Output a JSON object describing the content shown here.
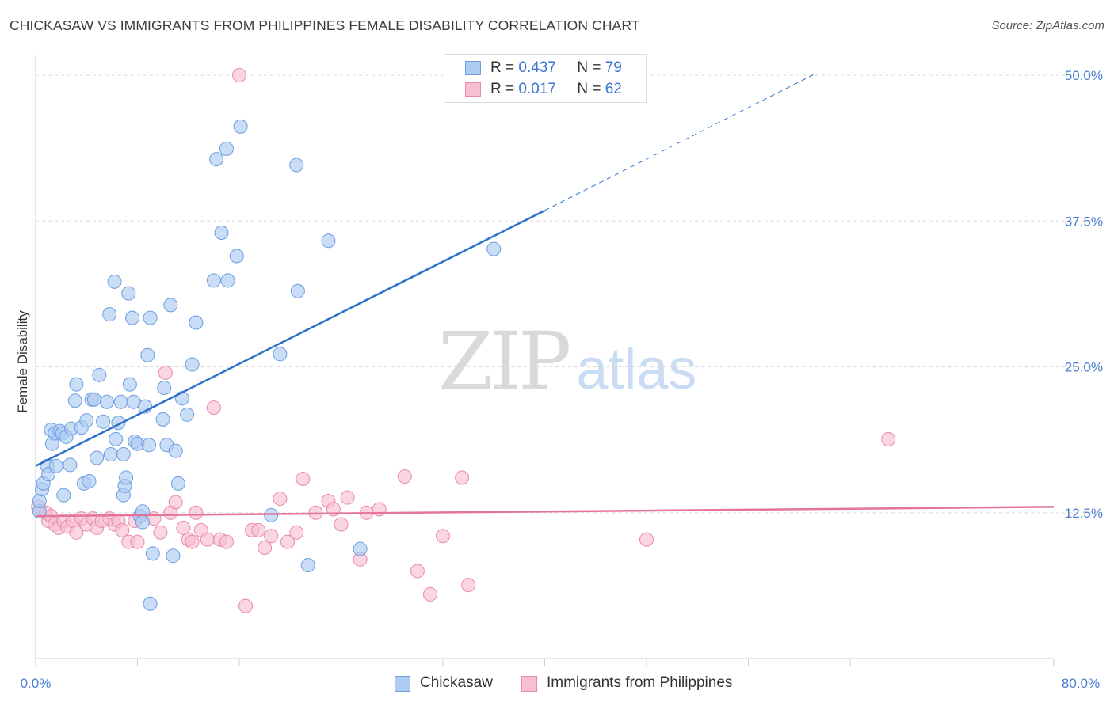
{
  "header": {
    "title": "CHICKASAW VS IMMIGRANTS FROM PHILIPPINES FEMALE DISABILITY CORRELATION CHART",
    "source": "Source: ZipAtlas.com"
  },
  "watermark": {
    "part1": "ZIP",
    "part2": "atlas"
  },
  "legend_stats": [
    {
      "r_label": "R =",
      "r_value": "0.437",
      "n_label": "N =",
      "n_value": "79"
    },
    {
      "r_label": "R =",
      "r_value": "0.017",
      "n_label": "N =",
      "n_value": "62"
    }
  ],
  "colors": {
    "blue_fill": "#aecbf2",
    "blue_stroke": "#6a9ee0",
    "blue_line": "#2f6fcc",
    "pink_fill": "#f8bfd2",
    "pink_stroke": "#e98aaa",
    "pink_line": "#e5739a",
    "tick_text": "#4a7fd0",
    "grid": "#dddddd"
  },
  "chart_data": {
    "type": "scatter",
    "title": "CHICKASAW VS IMMIGRANTS FROM PHILIPPINES FEMALE DISABILITY CORRELATION CHART",
    "ylabel": "Female Disability",
    "xlabel": "",
    "xlim": [
      0,
      80
    ],
    "ylim": [
      0,
      50
    ],
    "x_tick_labels": [
      "0.0%",
      "80.0%"
    ],
    "y_ticks": [
      12.5,
      25.0,
      37.5,
      50.0
    ],
    "y_tick_labels": [
      "12.5%",
      "25.0%",
      "37.5%",
      "50.0%"
    ],
    "legend_position": "top-center",
    "grid": true,
    "series": [
      {
        "name": "Chickasaw",
        "color": "#6a9ee0",
        "r": 0.437,
        "n": 79,
        "trend": {
          "x0": 0,
          "y0": 16.5,
          "x1": 40,
          "y1": 38.4,
          "dash_to_x": 61.4,
          "dash_to_y": 50.2
        },
        "points": [
          [
            0.3,
            12.6
          ],
          [
            0.3,
            13.5
          ],
          [
            0.5,
            14.5
          ],
          [
            0.6,
            15.0
          ],
          [
            0.9,
            16.5
          ],
          [
            1.0,
            15.8
          ],
          [
            1.2,
            19.6
          ],
          [
            1.3,
            18.4
          ],
          [
            1.5,
            19.3
          ],
          [
            1.6,
            16.5
          ],
          [
            1.9,
            19.5
          ],
          [
            2.1,
            19.3
          ],
          [
            2.2,
            14.0
          ],
          [
            2.4,
            19.0
          ],
          [
            2.7,
            16.6
          ],
          [
            2.8,
            19.7
          ],
          [
            3.1,
            22.1
          ],
          [
            3.2,
            23.5
          ],
          [
            3.6,
            19.8
          ],
          [
            3.8,
            15.0
          ],
          [
            4.0,
            20.4
          ],
          [
            4.2,
            15.2
          ],
          [
            4.4,
            22.2
          ],
          [
            4.6,
            22.2
          ],
          [
            4.8,
            17.2
          ],
          [
            5.0,
            24.3
          ],
          [
            5.3,
            20.3
          ],
          [
            5.6,
            22.0
          ],
          [
            5.8,
            29.5
          ],
          [
            5.9,
            17.5
          ],
          [
            6.2,
            32.3
          ],
          [
            6.3,
            18.8
          ],
          [
            6.5,
            20.2
          ],
          [
            6.7,
            22.0
          ],
          [
            6.9,
            17.5
          ],
          [
            6.9,
            14.0
          ],
          [
            7.0,
            14.8
          ],
          [
            7.1,
            15.5
          ],
          [
            7.3,
            31.3
          ],
          [
            7.4,
            23.5
          ],
          [
            7.6,
            29.2
          ],
          [
            7.7,
            22.0
          ],
          [
            7.8,
            18.6
          ],
          [
            8.0,
            18.4
          ],
          [
            8.2,
            12.2
          ],
          [
            8.4,
            12.6
          ],
          [
            8.4,
            11.7
          ],
          [
            8.6,
            21.6
          ],
          [
            8.8,
            26.0
          ],
          [
            8.9,
            18.3
          ],
          [
            9.0,
            4.7
          ],
          [
            9.0,
            29.2
          ],
          [
            9.2,
            9.0
          ],
          [
            10.0,
            20.5
          ],
          [
            10.1,
            23.2
          ],
          [
            10.3,
            18.3
          ],
          [
            10.6,
            30.3
          ],
          [
            10.8,
            8.8
          ],
          [
            11.0,
            17.8
          ],
          [
            11.2,
            15.0
          ],
          [
            11.5,
            22.3
          ],
          [
            11.9,
            20.9
          ],
          [
            12.3,
            25.2
          ],
          [
            12.6,
            28.8
          ],
          [
            14.0,
            32.4
          ],
          [
            14.2,
            42.8
          ],
          [
            14.6,
            36.5
          ],
          [
            15.0,
            43.7
          ],
          [
            15.1,
            32.4
          ],
          [
            15.8,
            34.5
          ],
          [
            16.1,
            45.6
          ],
          [
            18.5,
            12.3
          ],
          [
            19.2,
            26.1
          ],
          [
            20.5,
            42.3
          ],
          [
            20.6,
            31.5
          ],
          [
            21.4,
            8.0
          ],
          [
            23.0,
            35.8
          ],
          [
            25.5,
            9.4
          ],
          [
            36.0,
            35.1
          ]
        ]
      },
      {
        "name": "Immigrants from Philippines",
        "color": "#e98aaa",
        "r": 0.017,
        "n": 62,
        "trend": {
          "x0": 0,
          "y0": 12.2,
          "x1": 80,
          "y1": 13.0
        },
        "points": [
          [
            0.2,
            13.0
          ],
          [
            0.8,
            12.5
          ],
          [
            1.0,
            11.8
          ],
          [
            1.2,
            12.2
          ],
          [
            1.5,
            11.5
          ],
          [
            1.8,
            11.2
          ],
          [
            2.2,
            11.8
          ],
          [
            2.5,
            11.3
          ],
          [
            2.9,
            11.8
          ],
          [
            3.2,
            10.8
          ],
          [
            3.6,
            12.0
          ],
          [
            4.0,
            11.5
          ],
          [
            4.5,
            12.0
          ],
          [
            4.8,
            11.2
          ],
          [
            5.2,
            11.8
          ],
          [
            5.8,
            12.0
          ],
          [
            6.2,
            11.5
          ],
          [
            6.5,
            11.8
          ],
          [
            6.8,
            11.0
          ],
          [
            7.3,
            10.0
          ],
          [
            7.8,
            11.8
          ],
          [
            8.0,
            10.0
          ],
          [
            9.3,
            12.0
          ],
          [
            9.8,
            10.8
          ],
          [
            10.2,
            24.5
          ],
          [
            10.6,
            12.5
          ],
          [
            11.0,
            13.4
          ],
          [
            11.6,
            11.2
          ],
          [
            12.0,
            10.2
          ],
          [
            12.3,
            10.0
          ],
          [
            12.6,
            12.5
          ],
          [
            13.0,
            11.0
          ],
          [
            13.5,
            10.2
          ],
          [
            14.0,
            21.5
          ],
          [
            14.5,
            10.2
          ],
          [
            15.0,
            10.0
          ],
          [
            16.0,
            50.0
          ],
          [
            16.5,
            4.5
          ],
          [
            17.0,
            11.0
          ],
          [
            17.5,
            11.0
          ],
          [
            18.0,
            9.5
          ],
          [
            18.5,
            10.5
          ],
          [
            19.2,
            13.7
          ],
          [
            19.8,
            10.0
          ],
          [
            20.5,
            10.8
          ],
          [
            21.0,
            15.4
          ],
          [
            22.0,
            12.5
          ],
          [
            23.0,
            13.5
          ],
          [
            23.4,
            12.8
          ],
          [
            24.0,
            11.5
          ],
          [
            24.5,
            13.8
          ],
          [
            25.5,
            8.5
          ],
          [
            26.0,
            12.5
          ],
          [
            27.0,
            12.8
          ],
          [
            29.0,
            15.6
          ],
          [
            30.0,
            7.5
          ],
          [
            31.0,
            5.5
          ],
          [
            32.0,
            10.5
          ],
          [
            33.5,
            15.5
          ],
          [
            34.0,
            6.3
          ],
          [
            48.0,
            10.2
          ],
          [
            67.0,
            18.8
          ]
        ]
      }
    ]
  }
}
